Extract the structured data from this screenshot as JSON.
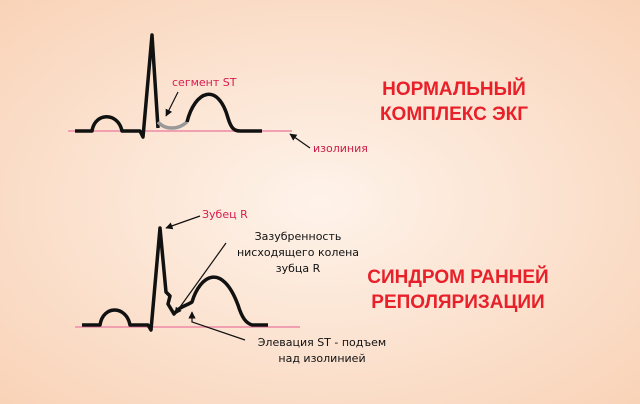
{
  "normal": {
    "segment_label": "сегмент ST",
    "isoline_label": "изолиния",
    "title_lines": [
      "НОРМАЛЬНЫЙ",
      "КОМПЛЕКС ЭКГ"
    ]
  },
  "early": {
    "r_wave_label": "Зубец R",
    "notch_lines": [
      "Зазубренность",
      "нисходящего колена",
      "зубца R"
    ],
    "elevation_lines": [
      "Элевация ST - подъем",
      "над изолинией"
    ],
    "title_lines": [
      "СИНДРОМ РАННЕЙ",
      "РЕПОЛЯРИЗАЦИИ"
    ]
  }
}
